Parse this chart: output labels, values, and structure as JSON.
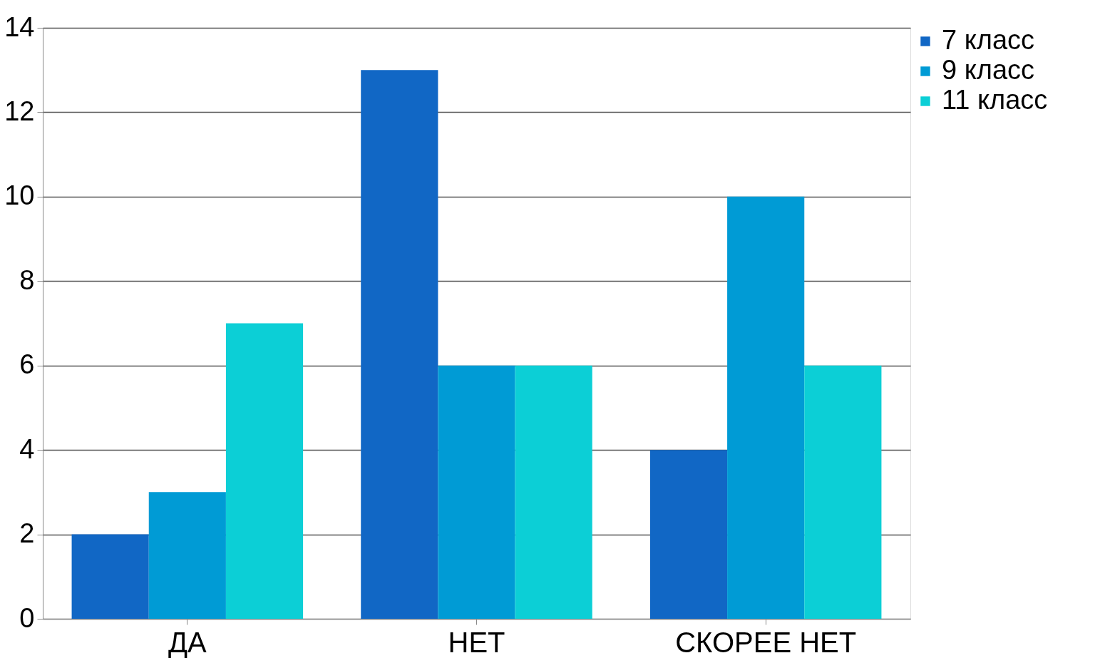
{
  "chart_data": {
    "type": "bar",
    "categories": [
      "ДА",
      "НЕТ",
      "СКОРЕЕ НЕТ"
    ],
    "series": [
      {
        "name": "7 класс",
        "color": "#1167c5",
        "values": [
          2,
          13,
          4
        ]
      },
      {
        "name": "9 класс",
        "color": "#009bd5",
        "values": [
          3,
          6,
          10
        ]
      },
      {
        "name": "11 класс",
        "color": "#0ccfd6",
        "values": [
          7,
          6,
          6
        ]
      }
    ],
    "ylim": [
      0,
      14
    ],
    "yticks": [
      0,
      2,
      4,
      6,
      8,
      10,
      12,
      14
    ],
    "grid": "y",
    "legend": "right"
  }
}
